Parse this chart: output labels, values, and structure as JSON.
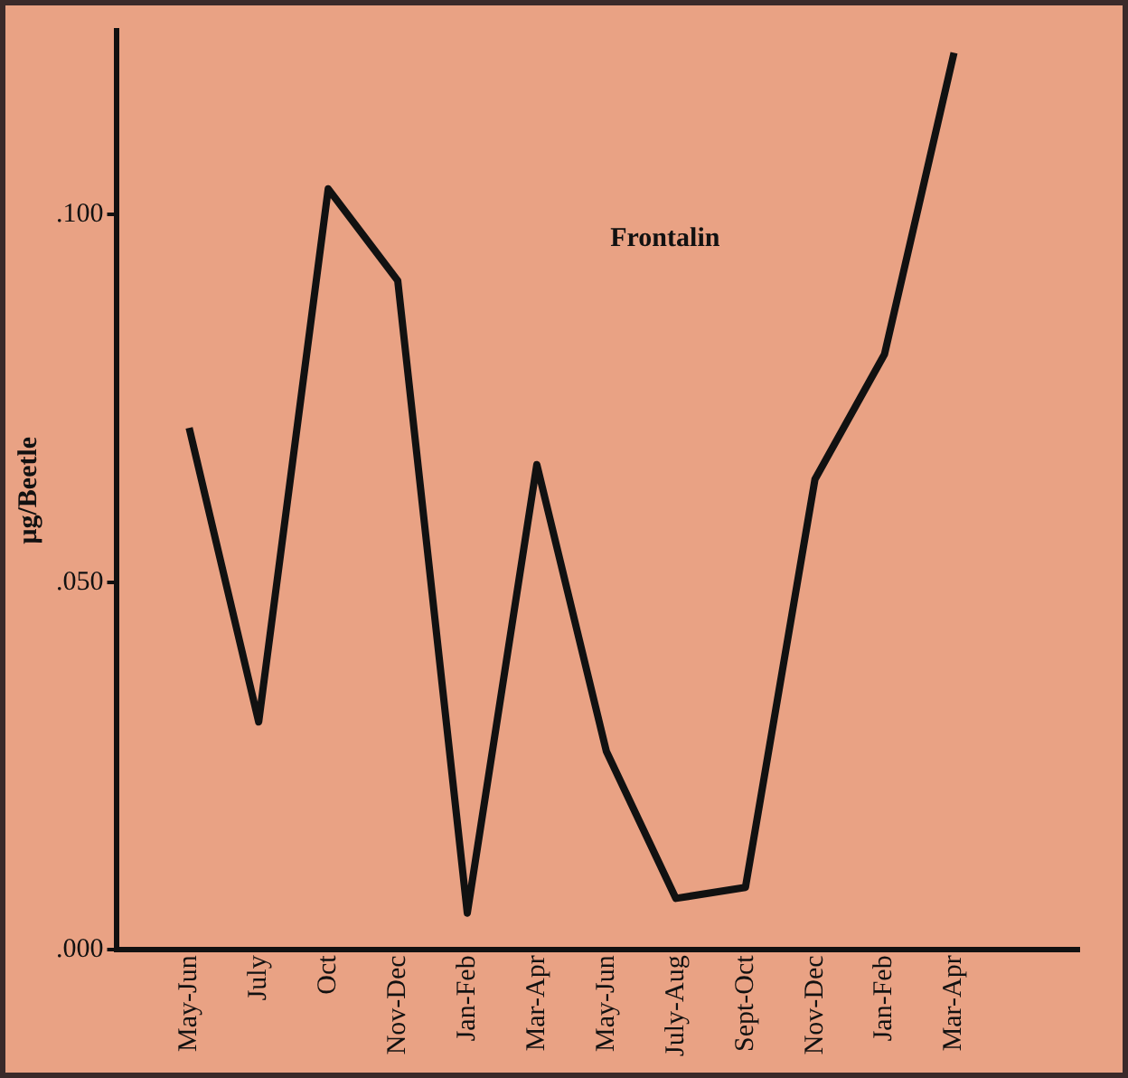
{
  "chart_data": {
    "type": "line",
    "ylabel": "μg/Beetle",
    "categories": [
      "May-Jun",
      "July",
      "Oct",
      "Nov-Dec",
      "Jan-Feb",
      "Mar-Apr",
      "May-Jun",
      "July-Aug",
      "Sept-Oct",
      "Nov-Dec",
      "Jan-Feb",
      "Mar-Apr"
    ],
    "series": [
      {
        "name": "Frontalin",
        "color": "#111111",
        "values": [
          0.071,
          0.031,
          0.1035,
          0.091,
          0.005,
          0.066,
          0.027,
          0.007,
          0.0085,
          0.064,
          0.081,
          0.122
        ]
      }
    ],
    "ylim": [
      0,
      0.125
    ],
    "yticks": [
      {
        "value": 0,
        "label": ".000"
      },
      {
        "value": 0.05,
        "label": ".050"
      },
      {
        "value": 0.1,
        "label": ".100"
      }
    ],
    "grid": false,
    "legend": false,
    "marker": "none",
    "line_style": "solid"
  }
}
